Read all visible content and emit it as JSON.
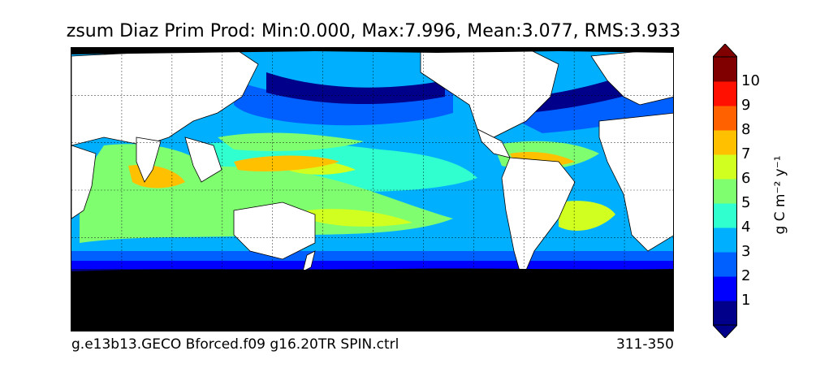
{
  "title": "zsum Diaz Prim Prod: Min:0.000, Max:7.996, Mean:3.077, RMS:3.933",
  "footer_left": "g.e13b13.GECO Bforced.f09 g16.20TR SPIN.ctrl",
  "footer_right": "311-350",
  "colorbar": {
    "units_label": "g C m⁻² y⁻¹",
    "extend": "both",
    "levels": [
      "1",
      "2",
      "3",
      "4",
      "5",
      "6",
      "7",
      "8",
      "9",
      "10"
    ],
    "colors": [
      "#00008a",
      "#0000ff",
      "#0060ff",
      "#00b0ff",
      "#30ffd0",
      "#7fff70",
      "#d0ff20",
      "#ffc000",
      "#ff6000",
      "#ff1000",
      "#800000"
    ],
    "over_color": "#800000",
    "under_color": "#00008a"
  },
  "map": {
    "land_color": "#ffffff",
    "ice_color": "#000000",
    "grid": true,
    "projection": "cylindrical global",
    "longitude_center": "Pacific (approx. 30E at left edge)"
  }
}
